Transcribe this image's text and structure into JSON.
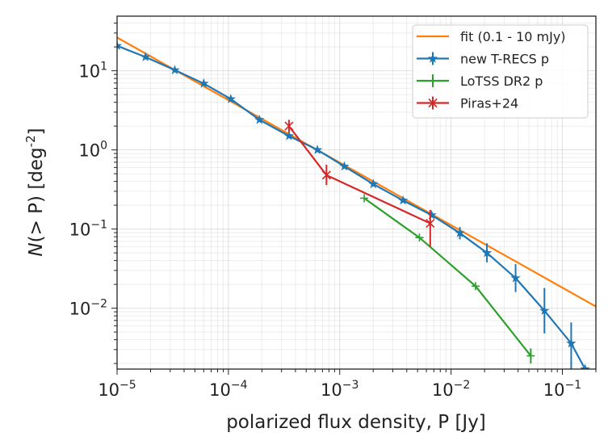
{
  "chart_data": {
    "type": "line",
    "xscale": "log",
    "yscale": "log",
    "xlim": [
      1e-05,
      0.2
    ],
    "ylim": [
      0.0017,
      49
    ],
    "xlabel": "polarized flux density, P [Jy]",
    "ylabel": "N(> P) [deg^-2]",
    "xticks": [
      {
        "v": 1e-05,
        "base": "10",
        "exp": "−5"
      },
      {
        "v": 0.0001,
        "base": "10",
        "exp": "−4"
      },
      {
        "v": 0.001,
        "base": "10",
        "exp": "−3"
      },
      {
        "v": 0.01,
        "base": "10",
        "exp": "−2"
      },
      {
        "v": 0.1,
        "base": "10",
        "exp": "−1"
      }
    ],
    "yticks": [
      {
        "v": 10,
        "base": "10",
        "exp": "1"
      },
      {
        "v": 1,
        "base": "10",
        "exp": "0"
      },
      {
        "v": 0.1,
        "base": "10",
        "exp": "−1"
      },
      {
        "v": 0.01,
        "base": "10",
        "exp": "−2"
      }
    ],
    "grid": true,
    "legend_position": "top-right",
    "series": [
      {
        "name": "fit (0.1 - 10 mJy)",
        "color": "#ff7f0e",
        "marker": "none",
        "x": [
          1e-05,
          0.2
        ],
        "y": [
          26.3,
          0.0105
        ]
      },
      {
        "name": "new T-RECS p",
        "color": "#1f77b4",
        "marker": "star",
        "x": [
          1e-05,
          1.8e-05,
          3.3e-05,
          6e-05,
          0.000105,
          0.00019,
          0.00035,
          0.00063,
          0.0011,
          0.002,
          0.0037,
          0.0067,
          0.012,
          0.021,
          0.038,
          0.069,
          0.12,
          0.16
        ],
        "y": [
          20.7,
          14.9,
          10.2,
          6.9,
          4.4,
          2.4,
          1.5,
          1.0,
          0.62,
          0.37,
          0.23,
          0.15,
          0.089,
          0.05,
          0.024,
          0.0093,
          0.0036,
          0.0017
        ],
        "ylow": [
          null,
          null,
          null,
          null,
          null,
          null,
          null,
          null,
          null,
          null,
          null,
          null,
          0.074,
          0.038,
          0.016,
          0.0048,
          0.0015,
          null
        ],
        "yhigh": [
          null,
          null,
          null,
          null,
          null,
          null,
          null,
          null,
          null,
          null,
          null,
          null,
          0.106,
          0.066,
          0.036,
          0.018,
          0.0066,
          null
        ]
      },
      {
        "name": "LoTSS DR2 p",
        "color": "#2ca02c",
        "marker": "plus",
        "x": [
          0.00166,
          0.0052,
          0.0166,
          0.052
        ],
        "y": [
          0.245,
          0.078,
          0.019,
          0.0025
        ],
        "ylow": [
          null,
          null,
          null,
          0.002
        ],
        "yhigh": [
          null,
          null,
          null,
          0.0031
        ]
      },
      {
        "name": "Piras+24",
        "color": "#d62728",
        "marker": "x",
        "x": [
          0.00035,
          0.00076,
          0.0065
        ],
        "y": [
          2.0,
          0.48,
          0.118
        ],
        "ylow": [
          1.66,
          0.36,
          0.06
        ],
        "yhigh": [
          2.4,
          0.65,
          0.175
        ]
      }
    ]
  }
}
